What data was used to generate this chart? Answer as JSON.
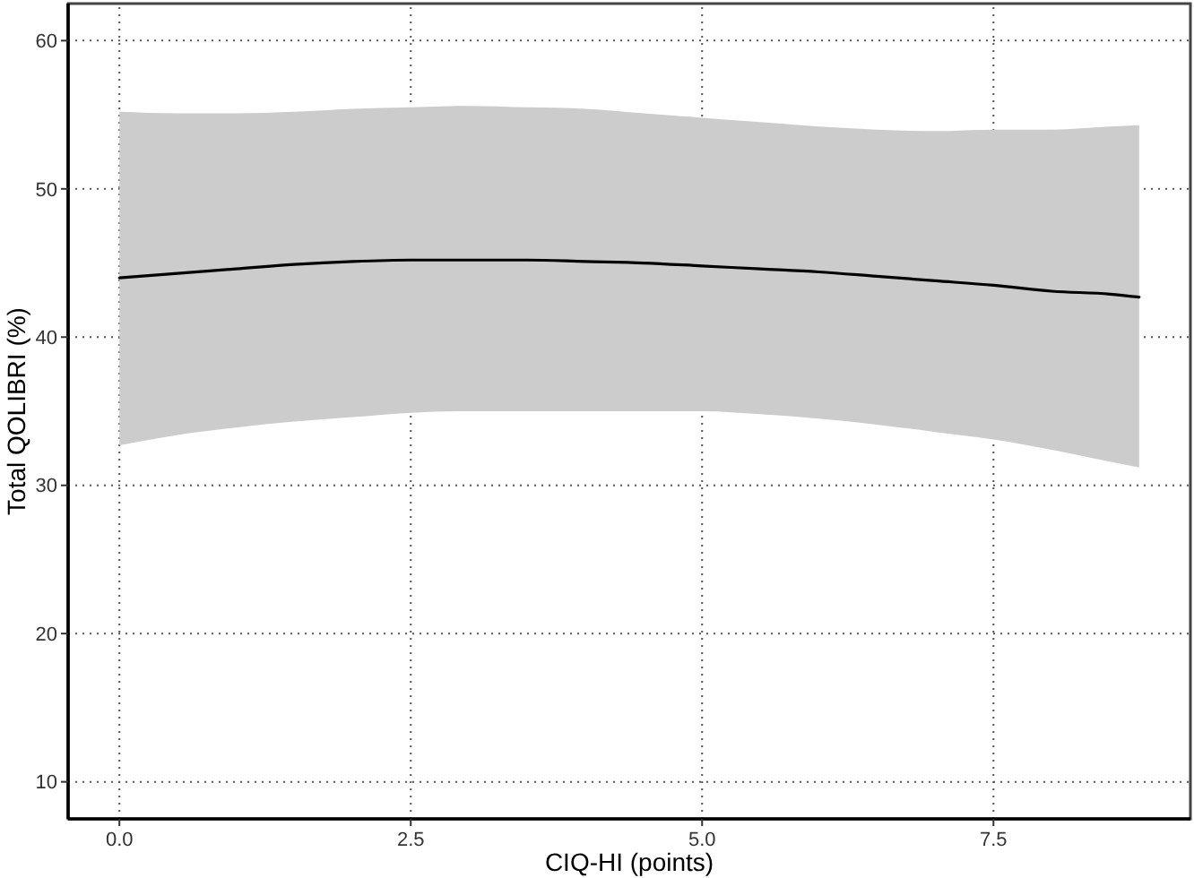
{
  "chart_data": {
    "type": "line",
    "xlabel": "CIQ-HI (points)",
    "ylabel": "Total QOLIBRI (%)",
    "x": [
      0,
      0.5,
      1,
      1.5,
      2,
      2.5,
      3,
      3.5,
      4,
      4.5,
      5,
      5.5,
      6,
      6.5,
      7,
      7.5,
      8,
      8.5,
      8.75
    ],
    "series": [
      {
        "color": "#000000",
        "values": [
          44.0,
          44.3,
          44.6,
          44.9,
          45.1,
          45.2,
          45.2,
          45.2,
          45.1,
          45.0,
          44.8,
          44.6,
          44.4,
          44.1,
          43.8,
          43.5,
          43.1,
          42.9,
          42.7
        ],
        "upper": [
          55.2,
          55.1,
          55.1,
          55.2,
          55.4,
          55.5,
          55.6,
          55.5,
          55.4,
          55.1,
          54.8,
          54.5,
          54.2,
          54.0,
          53.9,
          54.0,
          54.0,
          54.2,
          54.3
        ],
        "lower": [
          32.7,
          33.4,
          33.9,
          34.3,
          34.6,
          34.9,
          35.0,
          35.0,
          35.0,
          35.0,
          35.0,
          34.8,
          34.5,
          34.1,
          33.6,
          33.1,
          32.4,
          31.6,
          31.2
        ]
      }
    ],
    "xlim": [
      -0.44,
      9.19
    ],
    "xticks": [
      {
        "value": 0,
        "label": "0.0"
      },
      2.5,
      {
        "value": 5,
        "label": "5.0"
      },
      7.5
    ],
    "ylim": [
      7.5,
      62.5
    ],
    "yticks": [
      10,
      20,
      30,
      40,
      50,
      60
    ],
    "grid": true,
    "line_style": "solid"
  }
}
